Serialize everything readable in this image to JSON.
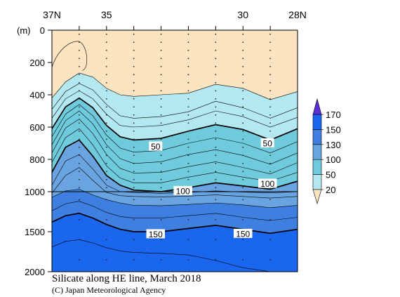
{
  "chart_data": {
    "type": "contour",
    "title": "Silicate along HE line, March 2018",
    "credit": "(C) Japan Meteorological Agency",
    "x_axis": {
      "range": [
        37,
        28
      ],
      "end_labels": [
        "37N",
        "28N"
      ],
      "tick_labels": [
        {
          "value": 35,
          "label": "35"
        },
        {
          "value": 30,
          "label": "30"
        }
      ],
      "stations": [
        36,
        35,
        34,
        33,
        32,
        31,
        30,
        29
      ]
    },
    "y_axis": {
      "unit_label": "(m)",
      "range": [
        0,
        2000
      ],
      "note": "0–1000 m and 1000–2000 m are drawn at different scales",
      "tick_labels": [
        {
          "value": 0,
          "label": "0"
        },
        {
          "value": 200,
          "label": "200"
        },
        {
          "value": 400,
          "label": "400"
        },
        {
          "value": 600,
          "label": "600"
        },
        {
          "value": 800,
          "label": "800"
        },
        {
          "value": 1000,
          "label": "1000"
        },
        {
          "value": 1500,
          "label": "1500"
        },
        {
          "value": 2000,
          "label": "2000"
        }
      ]
    },
    "colorbar": {
      "levels": [
        {
          "label": "20",
          "color": "#fce4c0"
        },
        {
          "label": "50",
          "color": "#b3e8f0"
        },
        {
          "label": "100",
          "color": "#6fcbdc"
        },
        {
          "label": "130",
          "color": "#6aa4e0"
        },
        {
          "label": "150",
          "color": "#3f7fe0"
        },
        {
          "label": "170",
          "color": "#1a66ef"
        }
      ],
      "top_color": "#5b2fd6"
    },
    "contour_labels": [
      {
        "text": "50",
        "lat": 33.2,
        "depth": 720
      },
      {
        "text": "50",
        "lat": 29.1,
        "depth": 700
      },
      {
        "text": "100",
        "lat": 32.2,
        "depth": 995
      },
      {
        "text": "100",
        "lat": 29.1,
        "depth": 950
      },
      {
        "text": "150",
        "lat": 33.2,
        "depth": 1530
      },
      {
        "text": "150",
        "lat": 30.0,
        "depth": 1525
      }
    ],
    "isolines": [
      {
        "level": 20,
        "bold": false,
        "points": [
          [
            37,
            420
          ],
          [
            36.5,
            320
          ],
          [
            36.0,
            265
          ],
          [
            35.5,
            290
          ],
          [
            35.0,
            360
          ],
          [
            34.5,
            400
          ],
          [
            34,
            410
          ],
          [
            33,
            400
          ],
          [
            32,
            390
          ],
          [
            31,
            335
          ],
          [
            30,
            360
          ],
          [
            29,
            430
          ],
          [
            28,
            380
          ]
        ]
      },
      {
        "level": 30,
        "bold": false,
        "points": [
          [
            37,
            490
          ],
          [
            36.5,
            380
          ],
          [
            36.0,
            330
          ],
          [
            35.5,
            370
          ],
          [
            35.0,
            460
          ],
          [
            34.5,
            530
          ],
          [
            34,
            545
          ],
          [
            33,
            535
          ],
          [
            32,
            505
          ],
          [
            31,
            440
          ],
          [
            30,
            480
          ],
          [
            29,
            545
          ],
          [
            28,
            480
          ]
        ]
      },
      {
        "level": 40,
        "bold": false,
        "points": [
          [
            37,
            545
          ],
          [
            36.5,
            425
          ],
          [
            36.0,
            375
          ],
          [
            35.5,
            425
          ],
          [
            35.0,
            520
          ],
          [
            34.5,
            590
          ],
          [
            34,
            600
          ],
          [
            33,
            590
          ],
          [
            32,
            555
          ],
          [
            31,
            500
          ],
          [
            30,
            535
          ],
          [
            29,
            600
          ],
          [
            28,
            540
          ]
        ]
      },
      {
        "level": 50,
        "bold": true,
        "points": [
          [
            37,
            610
          ],
          [
            36.5,
            475
          ],
          [
            36.0,
            420
          ],
          [
            35.5,
            480
          ],
          [
            35.0,
            590
          ],
          [
            34.5,
            660
          ],
          [
            34,
            680
          ],
          [
            33,
            670
          ],
          [
            32,
            625
          ],
          [
            31,
            585
          ],
          [
            30,
            615
          ],
          [
            29,
            680
          ],
          [
            28,
            610
          ]
        ]
      },
      {
        "level": 60,
        "bold": false,
        "points": [
          [
            37,
            660
          ],
          [
            36.5,
            520
          ],
          [
            36.0,
            460
          ],
          [
            35.5,
            530
          ],
          [
            35.0,
            650
          ],
          [
            34.5,
            730
          ],
          [
            34,
            755
          ],
          [
            33,
            745
          ],
          [
            32,
            700
          ],
          [
            31,
            665
          ],
          [
            30,
            700
          ],
          [
            29,
            760
          ],
          [
            28,
            690
          ]
        ]
      },
      {
        "level": 70,
        "bold": false,
        "points": [
          [
            37,
            710
          ],
          [
            36.5,
            560
          ],
          [
            36.0,
            500
          ],
          [
            35.5,
            580
          ],
          [
            35.0,
            710
          ],
          [
            34.5,
            795
          ],
          [
            34,
            825
          ],
          [
            33,
            815
          ],
          [
            32,
            770
          ],
          [
            31,
            740
          ],
          [
            30,
            775
          ],
          [
            29,
            830
          ],
          [
            28,
            760
          ]
        ]
      },
      {
        "level": 80,
        "bold": false,
        "points": [
          [
            37,
            760
          ],
          [
            36.5,
            605
          ],
          [
            36.0,
            550
          ],
          [
            35.5,
            640
          ],
          [
            35.0,
            770
          ],
          [
            34.5,
            855
          ],
          [
            34,
            885
          ],
          [
            33,
            880
          ],
          [
            32,
            845
          ],
          [
            31,
            815
          ],
          [
            30,
            850
          ],
          [
            29,
            890
          ],
          [
            28,
            820
          ]
        ]
      },
      {
        "level": 90,
        "bold": false,
        "points": [
          [
            37,
            820
          ],
          [
            36.5,
            665
          ],
          [
            36.0,
            610
          ],
          [
            35.5,
            710
          ],
          [
            35.0,
            840
          ],
          [
            34.5,
            915
          ],
          [
            34,
            945
          ],
          [
            33,
            945
          ],
          [
            32,
            910
          ],
          [
            31,
            880
          ],
          [
            30,
            910
          ],
          [
            29,
            935
          ],
          [
            28,
            880
          ]
        ]
      },
      {
        "level": 100,
        "bold": true,
        "points": [
          [
            37,
            880
          ],
          [
            36.5,
            725
          ],
          [
            36.0,
            680
          ],
          [
            35.5,
            780
          ],
          [
            35.0,
            900
          ],
          [
            34.5,
            960
          ],
          [
            34,
            990
          ],
          [
            33,
            1000
          ],
          [
            32,
            975
          ],
          [
            31,
            945
          ],
          [
            30,
            965
          ],
          [
            29,
            985
          ],
          [
            28,
            935
          ]
        ]
      },
      {
        "level": 110,
        "bold": false,
        "points": [
          [
            37,
            960
          ],
          [
            36.5,
            810
          ],
          [
            36.0,
            770
          ],
          [
            35.5,
            860
          ],
          [
            35.0,
            960
          ],
          [
            34.5,
            1000
          ],
          [
            34,
            1010
          ],
          [
            33,
            1020
          ],
          [
            32,
            1010
          ],
          [
            31,
            995
          ],
          [
            30,
            1005
          ],
          [
            29,
            1015
          ],
          [
            28,
            1000
          ]
        ]
      },
      {
        "level": 120,
        "bold": false,
        "points": [
          [
            37,
            1020
          ],
          [
            36.5,
            900
          ],
          [
            36.0,
            850
          ],
          [
            35.5,
            930
          ],
          [
            35.0,
            1010
          ],
          [
            34.5,
            1050
          ],
          [
            34,
            1060
          ],
          [
            33,
            1065
          ],
          [
            32,
            1055
          ],
          [
            31,
            1040
          ],
          [
            30,
            1060
          ],
          [
            29,
            1080
          ],
          [
            28,
            1060
          ]
        ]
      },
      {
        "level": 130,
        "bold": false,
        "points": [
          [
            37,
            1070
          ],
          [
            36.5,
            995
          ],
          [
            36.0,
            985
          ],
          [
            35.5,
            1040
          ],
          [
            35.0,
            1100
          ],
          [
            34.5,
            1140
          ],
          [
            34,
            1170
          ],
          [
            33,
            1175
          ],
          [
            32,
            1160
          ],
          [
            31,
            1140
          ],
          [
            30,
            1165
          ],
          [
            29,
            1200
          ],
          [
            28,
            1170
          ]
        ]
      },
      {
        "level": 140,
        "bold": false,
        "points": [
          [
            37,
            1240
          ],
          [
            36.5,
            1150
          ],
          [
            36.0,
            1120
          ],
          [
            35.5,
            1180
          ],
          [
            35.0,
            1260
          ],
          [
            34.5,
            1310
          ],
          [
            34,
            1330
          ],
          [
            33,
            1330
          ],
          [
            32,
            1300
          ],
          [
            31,
            1270
          ],
          [
            30,
            1320
          ],
          [
            29,
            1360
          ],
          [
            28,
            1320
          ]
        ]
      },
      {
        "level": 150,
        "bold": true,
        "points": [
          [
            37,
            1380
          ],
          [
            36.5,
            1300
          ],
          [
            36.0,
            1270
          ],
          [
            35.5,
            1330
          ],
          [
            35.0,
            1410
          ],
          [
            34.5,
            1470
          ],
          [
            34,
            1500
          ],
          [
            33,
            1500
          ],
          [
            32,
            1460
          ],
          [
            31,
            1420
          ],
          [
            30,
            1470
          ],
          [
            29,
            1520
          ],
          [
            28,
            1470
          ]
        ]
      },
      {
        "level": 160,
        "bold": false,
        "points": [
          [
            37,
            1690
          ],
          [
            36.5,
            1620
          ],
          [
            36.0,
            1600
          ],
          [
            35.5,
            1640
          ],
          [
            35.0,
            1700
          ],
          [
            34.5,
            1740
          ],
          [
            34,
            1760
          ],
          [
            33,
            1770
          ],
          [
            32,
            1790
          ],
          [
            31,
            1860
          ],
          [
            30,
            1950
          ],
          [
            29,
            2000
          ]
        ]
      }
    ]
  }
}
